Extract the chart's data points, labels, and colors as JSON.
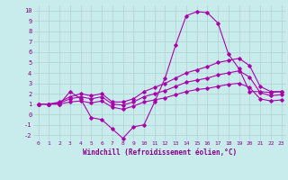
{
  "title": "",
  "xlabel": "Windchill (Refroidissement éolien,°C)",
  "ylabel": "",
  "background_color": "#c8ecec",
  "grid_color": "#b0d0d0",
  "line_color": "#aa00aa",
  "xlim": [
    -0.5,
    23.5
  ],
  "ylim": [
    -2.5,
    10.5
  ],
  "x": [
    0,
    1,
    2,
    3,
    4,
    5,
    6,
    7,
    8,
    9,
    10,
    11,
    12,
    13,
    14,
    15,
    16,
    17,
    18,
    19,
    20,
    21,
    22,
    23
  ],
  "series": [
    [
      1.0,
      1.0,
      1.0,
      2.2,
      1.5,
      -0.3,
      -0.5,
      -1.4,
      -2.3,
      -1.2,
      -1.0,
      1.2,
      3.5,
      6.7,
      9.5,
      9.9,
      9.8,
      8.8,
      5.8,
      4.4,
      2.2,
      2.2,
      2.1,
      2.2
    ],
    [
      1.0,
      1.0,
      1.2,
      1.7,
      2.0,
      1.8,
      2.0,
      1.2,
      1.2,
      1.5,
      2.2,
      2.6,
      3.0,
      3.5,
      4.0,
      4.3,
      4.6,
      5.0,
      5.2,
      5.4,
      4.7,
      2.7,
      2.2,
      2.2
    ],
    [
      1.0,
      1.0,
      1.1,
      1.5,
      1.7,
      1.5,
      1.7,
      1.0,
      0.9,
      1.2,
      1.7,
      2.0,
      2.3,
      2.7,
      3.1,
      3.3,
      3.5,
      3.8,
      4.0,
      4.2,
      3.6,
      2.1,
      1.8,
      1.9
    ],
    [
      1.0,
      1.0,
      1.0,
      1.2,
      1.3,
      1.1,
      1.3,
      0.7,
      0.5,
      0.8,
      1.2,
      1.4,
      1.6,
      1.9,
      2.2,
      2.4,
      2.5,
      2.7,
      2.9,
      3.0,
      2.6,
      1.5,
      1.3,
      1.4
    ]
  ],
  "xtick_fontsize": 4.5,
  "ytick_fontsize": 5.0,
  "xlabel_fontsize": 5.5
}
